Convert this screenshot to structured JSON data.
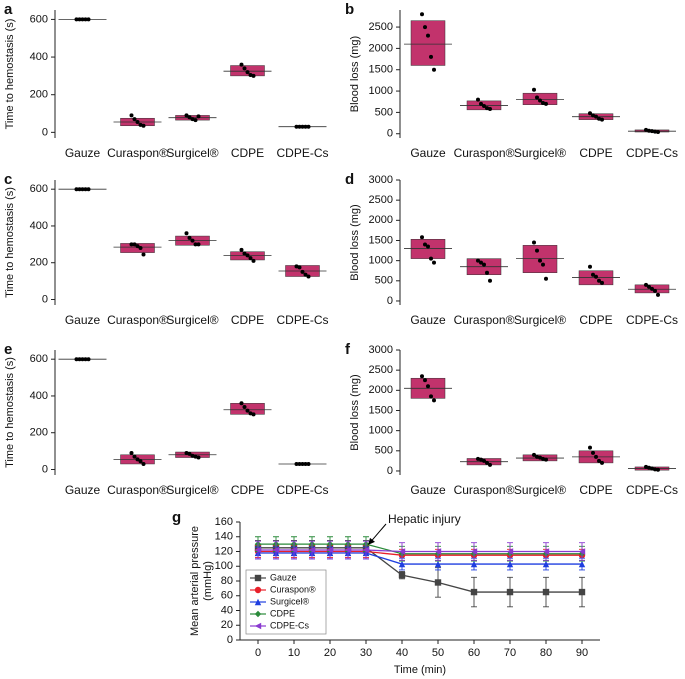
{
  "chart_data": [
    {
      "type": "box",
      "panel_label": "a",
      "ylabel": "Time to hemostasis (s)",
      "color": "#c2336c",
      "categories": [
        "Gauze",
        "Curaspon®",
        "Surgicel®",
        "CDPE",
        "CDPE-Cs"
      ],
      "box_low": [
        600,
        35,
        65,
        300,
        30
      ],
      "box_high": [
        600,
        75,
        90,
        355,
        30
      ],
      "means": [
        600,
        55,
        78,
        325,
        30
      ],
      "points": [
        [
          600,
          600,
          600,
          600,
          600
        ],
        [
          90,
          70,
          55,
          40,
          35
        ],
        [
          90,
          80,
          70,
          65,
          85
        ],
        [
          360,
          340,
          320,
          305,
          300
        ],
        [
          30,
          30,
          30,
          30,
          30
        ]
      ],
      "ylim": [
        -30,
        650
      ],
      "yticks": [
        0,
        200,
        400,
        600
      ]
    },
    {
      "type": "box",
      "panel_label": "b",
      "ylabel": "Blood loss (mg)",
      "color": "#c2336c",
      "categories": [
        "Gauze",
        "Curaspon®",
        "Surgicel®",
        "CDPE",
        "CDPE-Cs"
      ],
      "box_low": [
        1600,
        560,
        680,
        330,
        40
      ],
      "box_high": [
        2650,
        770,
        950,
        470,
        90
      ],
      "means": [
        2100,
        660,
        800,
        400,
        60
      ],
      "points": [
        [
          2800,
          2500,
          2300,
          1800,
          1500
        ],
        [
          800,
          700,
          650,
          600,
          580
        ],
        [
          1030,
          850,
          780,
          720,
          700
        ],
        [
          480,
          430,
          400,
          350,
          330
        ],
        [
          90,
          70,
          60,
          50,
          40
        ]
      ],
      "ylim": [
        -100,
        2900
      ],
      "yticks": [
        0,
        500,
        1000,
        1500,
        2000,
        2500
      ]
    },
    {
      "type": "box",
      "panel_label": "c",
      "ylabel": "Time to hemostasis (s)",
      "color": "#c2336c",
      "categories": [
        "Gauze",
        "Curaspon®",
        "Surgicel®",
        "CDPE",
        "CDPE-Cs"
      ],
      "box_low": [
        600,
        255,
        295,
        215,
        125
      ],
      "box_high": [
        600,
        305,
        345,
        260,
        185
      ],
      "means": [
        600,
        285,
        320,
        240,
        155
      ],
      "points": [
        [
          600,
          600,
          600,
          600,
          600
        ],
        [
          300,
          300,
          290,
          280,
          245
        ],
        [
          360,
          335,
          320,
          300,
          300
        ],
        [
          270,
          250,
          240,
          225,
          210
        ],
        [
          180,
          175,
          150,
          135,
          125
        ]
      ],
      "ylim": [
        -30,
        650
      ],
      "yticks": [
        0,
        200,
        400,
        600
      ]
    },
    {
      "type": "box",
      "panel_label": "d",
      "ylabel": "Blood loss (mg)",
      "color": "#c2336c",
      "categories": [
        "Gauze",
        "Curaspon®",
        "Surgicel®",
        "CDPE",
        "CDPE-Cs"
      ],
      "box_low": [
        1050,
        650,
        700,
        400,
        200
      ],
      "box_high": [
        1530,
        1050,
        1380,
        750,
        400
      ],
      "means": [
        1300,
        850,
        1050,
        580,
        290
      ],
      "points": [
        [
          1580,
          1400,
          1350,
          1050,
          950
        ],
        [
          1000,
          950,
          900,
          700,
          500
        ],
        [
          1450,
          1250,
          1000,
          900,
          550
        ],
        [
          850,
          650,
          600,
          500,
          450
        ],
        [
          400,
          350,
          300,
          250,
          150
        ]
      ],
      "ylim": [
        -100,
        3000
      ],
      "yticks": [
        0,
        500,
        1000,
        1500,
        2000,
        2500,
        3000
      ]
    },
    {
      "type": "box",
      "panel_label": "e",
      "ylabel": "Time to hemostasis (s)",
      "color": "#c2336c",
      "categories": [
        "Gauze",
        "Curaspon®",
        "Surgicel®",
        "CDPE",
        "CDPE-Cs"
      ],
      "box_low": [
        600,
        30,
        65,
        300,
        30
      ],
      "box_high": [
        600,
        80,
        95,
        360,
        30
      ],
      "means": [
        600,
        55,
        80,
        325,
        30
      ],
      "points": [
        [
          600,
          600,
          600,
          600,
          600
        ],
        [
          90,
          70,
          55,
          45,
          30
        ],
        [
          90,
          85,
          75,
          70,
          65
        ],
        [
          360,
          340,
          320,
          305,
          300
        ],
        [
          30,
          30,
          30,
          30,
          30
        ]
      ],
      "ylim": [
        -30,
        650
      ],
      "yticks": [
        0,
        200,
        400,
        600
      ]
    },
    {
      "type": "box",
      "panel_label": "f",
      "ylabel": "Blood loss (mg)",
      "color": "#c2336c",
      "categories": [
        "Gauze",
        "Curaspon®",
        "Surgicel®",
        "CDPE",
        "CDPE-Cs"
      ],
      "box_low": [
        1800,
        150,
        250,
        200,
        20
      ],
      "box_high": [
        2300,
        310,
        400,
        500,
        100
      ],
      "means": [
        2050,
        230,
        320,
        350,
        60
      ],
      "points": [
        [
          2350,
          2250,
          2100,
          1850,
          1750
        ],
        [
          300,
          280,
          250,
          200,
          150
        ],
        [
          400,
          350,
          330,
          300,
          280
        ],
        [
          580,
          450,
          350,
          250,
          200
        ],
        [
          100,
          80,
          60,
          40,
          30
        ]
      ],
      "ylim": [
        -100,
        3000
      ],
      "yticks": [
        0,
        500,
        1000,
        1500,
        2000,
        2500,
        3000
      ]
    },
    {
      "type": "line",
      "panel_label": "g",
      "ylabel": [
        "Mean arterial pressure",
        "(mmHg)"
      ],
      "xlabel": "Time (min)",
      "annotation": "Hepatic injury",
      "legend": "lower left",
      "x": [
        0,
        5,
        10,
        15,
        20,
        25,
        30,
        40,
        50,
        60,
        70,
        80,
        90
      ],
      "series": [
        {
          "name": "Gauze",
          "color": "#444444",
          "marker": "square",
          "values": [
            125,
            125,
            125,
            125,
            125,
            125,
            125,
            88,
            78,
            65,
            65,
            65,
            65
          ],
          "errors": [
            10,
            10,
            10,
            10,
            10,
            10,
            10,
            5,
            20,
            20,
            20,
            20,
            20
          ]
        },
        {
          "name": "Curaspon®",
          "color": "#e8202a",
          "marker": "circle",
          "values": [
            120,
            120,
            120,
            120,
            120,
            120,
            120,
            115,
            115,
            115,
            115,
            115,
            115
          ],
          "errors": [
            8,
            8,
            8,
            8,
            8,
            8,
            8,
            8,
            8,
            8,
            8,
            8,
            8
          ]
        },
        {
          "name": "Surgicel®",
          "color": "#1f3fe0",
          "marker": "triangle",
          "values": [
            118,
            118,
            118,
            118,
            118,
            118,
            118,
            103,
            103,
            103,
            103,
            103,
            103
          ],
          "errors": [
            8,
            8,
            8,
            8,
            8,
            8,
            8,
            8,
            8,
            8,
            8,
            8,
            8
          ]
        },
        {
          "name": "CDPE",
          "color": "#2a8a3a",
          "marker": "diamond",
          "values": [
            130,
            130,
            130,
            130,
            130,
            130,
            130,
            117,
            117,
            117,
            117,
            117,
            117
          ],
          "errors": [
            10,
            10,
            10,
            10,
            10,
            10,
            10,
            10,
            10,
            10,
            10,
            10,
            10
          ]
        },
        {
          "name": "CDPE-Cs",
          "color": "#8a3ad0",
          "marker": "triangle-left",
          "values": [
            122,
            122,
            122,
            122,
            122,
            122,
            122,
            120,
            120,
            120,
            120,
            120,
            120
          ],
          "errors": [
            12,
            12,
            12,
            12,
            12,
            12,
            12,
            12,
            12,
            12,
            12,
            12,
            12
          ]
        }
      ],
      "xlim": [
        -5,
        95
      ],
      "xticks": [
        0,
        10,
        20,
        30,
        40,
        50,
        60,
        70,
        80,
        90
      ],
      "ylim": [
        0,
        160
      ],
      "yticks": [
        0,
        20,
        40,
        60,
        80,
        100,
        120,
        140,
        160
      ]
    }
  ]
}
